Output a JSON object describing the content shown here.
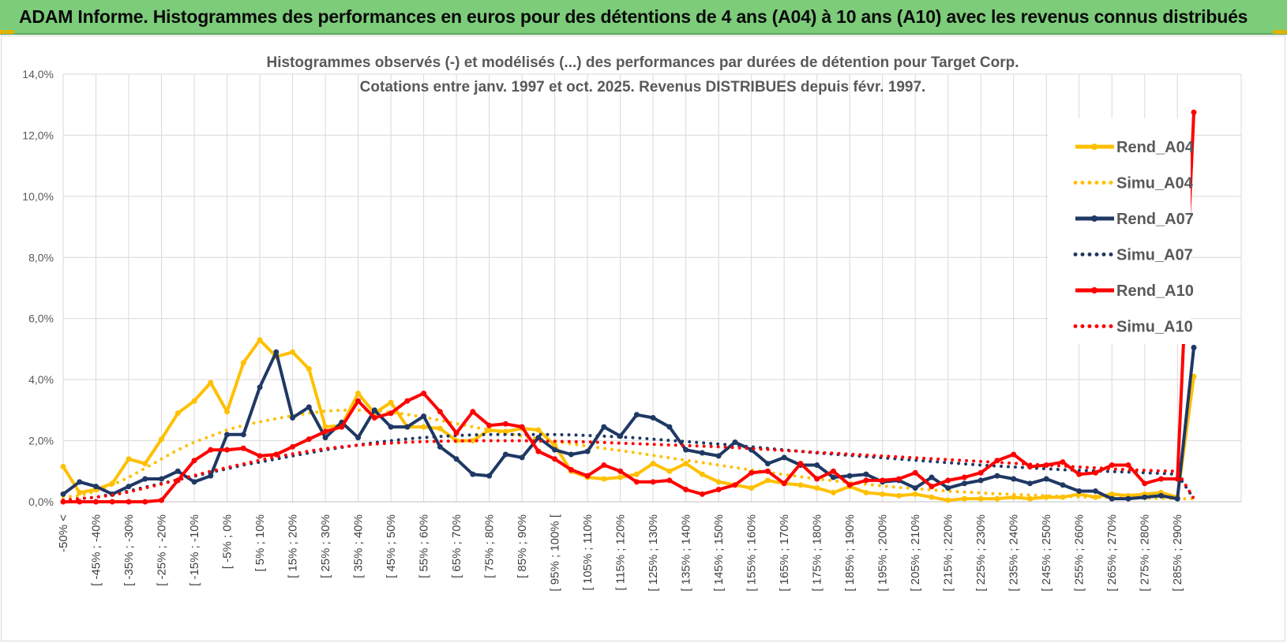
{
  "banner": {
    "title": "ADAM Informe. Histogrammes des performances en euros pour des détentions de 4 ans (A04) à 10 ans (A10) avec les revenus connus distribués"
  },
  "colors": {
    "banner_bg": "#7ccc7a",
    "A04": "#ffc000",
    "A07": "#1f3864",
    "A10": "#ff0000",
    "grid": "#d9d9d9"
  },
  "chart_data": {
    "type": "line",
    "title_lines": [
      "Histogrammes observés (-) et modélisés (...) des performances par durées de détention pour Target Corp.",
      "Cotations entre janv. 1997 et oct. 2025.  Revenus DISTRIBUES depuis févr. 1997."
    ],
    "y_ticks": [
      "0,0%",
      "2,0%",
      "4,0%",
      "6,0%",
      "8,0%",
      "10,0%",
      "12,0%",
      "14,0%"
    ],
    "ylim": [
      0,
      14
    ],
    "grid": true,
    "legend_position": "right",
    "category_labels": [
      "-50% <",
      "[ -45% ; -40%",
      "[ -35% ; -30%",
      "[ -25% ; -20%",
      "[ -15% ; -10%",
      "[ -5% ; 0%",
      "[ 5% ; 10%",
      "[ 15% ; 20%",
      "[ 25% ; 30%",
      "[ 35% ; 40%",
      "[ 45% ; 50%",
      "[ 55% ; 60%",
      "[ 65% ; 70%",
      "[ 75% ; 80%",
      "[ 85% ; 90%",
      "[ 95% ; 100% [",
      "[ 105% ; 110%",
      "[ 115% ; 120%",
      "[ 125% ; 130%",
      "[ 135% ; 140%",
      "[ 145% ; 150%",
      "[ 155% ; 160%",
      "[ 165% ; 170%",
      "[ 175% ; 180%",
      "[ 185% ; 190%",
      "[ 195% ; 200%",
      "[ 205% ; 210%",
      "[ 215% ; 220%",
      "[ 225% ; 230%",
      "[ 235% ; 240%",
      "[ 245% ; 250%",
      "[ 255% ; 260%",
      "[ 265% ; 270%",
      "[ 275% ; 280%",
      "[ 285% ; 290%"
    ],
    "n_points": 70,
    "series": [
      {
        "name": "Rend_A04",
        "style": "solid",
        "color": "#ffc000",
        "values": [
          1.15,
          0.3,
          0.4,
          0.6,
          1.4,
          1.25,
          2.05,
          2.9,
          3.3,
          3.9,
          2.95,
          4.55,
          5.3,
          4.75,
          4.9,
          4.35,
          2.45,
          2.5,
          3.55,
          2.9,
          3.25,
          2.45,
          2.45,
          2.4,
          2.0,
          2.0,
          2.35,
          2.3,
          2.4,
          2.35,
          1.85,
          1.0,
          0.8,
          0.75,
          0.8,
          0.9,
          1.25,
          1.0,
          1.25,
          0.9,
          0.65,
          0.55,
          0.45,
          0.7,
          0.6,
          0.55,
          0.45,
          0.3,
          0.5,
          0.3,
          0.25,
          0.2,
          0.25,
          0.15,
          0.05,
          0.1,
          0.1,
          0.1,
          0.15,
          0.1,
          0.15,
          0.15,
          0.25,
          0.15,
          0.25,
          0.2,
          0.25,
          0.3,
          0.15,
          4.1
        ]
      },
      {
        "name": "Simu_A04",
        "style": "dotted",
        "color": "#ffc000",
        "values": [
          0.15,
          0.2,
          0.35,
          0.55,
          0.8,
          1.1,
          1.4,
          1.7,
          1.95,
          2.15,
          2.35,
          2.5,
          2.62,
          2.72,
          2.82,
          2.9,
          2.97,
          3.0,
          3.0,
          2.98,
          2.93,
          2.86,
          2.77,
          2.67,
          2.56,
          2.45,
          2.35,
          2.25,
          2.15,
          2.06,
          1.98,
          1.9,
          1.82,
          1.75,
          1.68,
          1.6,
          1.52,
          1.44,
          1.36,
          1.28,
          1.2,
          1.12,
          1.04,
          0.96,
          0.89,
          0.82,
          0.75,
          0.69,
          0.63,
          0.57,
          0.52,
          0.47,
          0.43,
          0.39,
          0.35,
          0.32,
          0.29,
          0.26,
          0.24,
          0.22,
          0.2,
          0.18,
          0.16,
          0.15,
          0.14,
          0.13,
          0.12,
          0.11,
          0.1,
          0.1
        ]
      },
      {
        "name": "Rend_A07",
        "style": "solid",
        "color": "#1f3864",
        "values": [
          0.25,
          0.65,
          0.5,
          0.25,
          0.5,
          0.75,
          0.75,
          1.0,
          0.65,
          0.85,
          2.2,
          2.2,
          3.75,
          4.9,
          2.75,
          3.1,
          2.1,
          2.6,
          2.1,
          3.0,
          2.45,
          2.45,
          2.8,
          1.8,
          1.4,
          0.9,
          0.85,
          1.55,
          1.45,
          2.1,
          1.7,
          1.55,
          1.65,
          2.45,
          2.15,
          2.85,
          2.75,
          2.45,
          1.7,
          1.6,
          1.5,
          1.95,
          1.7,
          1.25,
          1.45,
          1.2,
          1.2,
          0.8,
          0.85,
          0.9,
          0.65,
          0.7,
          0.45,
          0.8,
          0.45,
          0.6,
          0.7,
          0.85,
          0.75,
          0.6,
          0.75,
          0.55,
          0.35,
          0.35,
          0.1,
          0.1,
          0.15,
          0.2,
          0.1,
          5.05
        ]
      },
      {
        "name": "Simu_A07",
        "style": "dotted",
        "color": "#1f3864",
        "values": [
          0.05,
          0.1,
          0.15,
          0.25,
          0.35,
          0.48,
          0.6,
          0.72,
          0.84,
          0.96,
          1.08,
          1.2,
          1.3,
          1.4,
          1.5,
          1.6,
          1.7,
          1.78,
          1.86,
          1.94,
          2.0,
          2.06,
          2.1,
          2.14,
          2.17,
          2.19,
          2.2,
          2.2,
          2.2,
          2.2,
          2.2,
          2.19,
          2.17,
          2.15,
          2.12,
          2.09,
          2.05,
          2.01,
          1.97,
          1.93,
          1.89,
          1.85,
          1.8,
          1.75,
          1.7,
          1.65,
          1.6,
          1.56,
          1.52,
          1.48,
          1.44,
          1.4,
          1.36,
          1.32,
          1.28,
          1.24,
          1.2,
          1.17,
          1.14,
          1.11,
          1.08,
          1.05,
          1.03,
          1.01,
          0.99,
          0.97,
          0.95,
          0.93,
          0.9,
          0.1
        ]
      },
      {
        "name": "Rend_A10",
        "style": "solid",
        "color": "#ff0000",
        "values": [
          0.0,
          0.0,
          0.0,
          0.0,
          0.0,
          0.0,
          0.05,
          0.7,
          1.35,
          1.7,
          1.7,
          1.75,
          1.5,
          1.55,
          1.8,
          2.05,
          2.3,
          2.45,
          3.3,
          2.75,
          2.9,
          3.3,
          3.55,
          2.95,
          2.25,
          2.95,
          2.5,
          2.55,
          2.45,
          1.65,
          1.4,
          1.05,
          0.85,
          1.2,
          1.0,
          0.65,
          0.65,
          0.7,
          0.4,
          0.25,
          0.4,
          0.55,
          0.95,
          1.0,
          0.6,
          1.25,
          0.75,
          1.0,
          0.55,
          0.7,
          0.7,
          0.75,
          0.95,
          0.5,
          0.7,
          0.8,
          0.95,
          1.35,
          1.55,
          1.15,
          1.2,
          1.3,
          0.9,
          0.95,
          1.2,
          1.2,
          0.6,
          0.75,
          0.75,
          12.75
        ]
      },
      {
        "name": "Simu_A10",
        "style": "dotted",
        "color": "#ff0000",
        "values": [
          0.05,
          0.1,
          0.15,
          0.22,
          0.32,
          0.45,
          0.58,
          0.72,
          0.86,
          1.0,
          1.12,
          1.24,
          1.36,
          1.47,
          1.57,
          1.66,
          1.74,
          1.8,
          1.85,
          1.89,
          1.92,
          1.95,
          1.97,
          1.98,
          1.99,
          2.0,
          2.0,
          2.0,
          2.0,
          1.99,
          1.98,
          1.97,
          1.96,
          1.94,
          1.92,
          1.9,
          1.88,
          1.86,
          1.84,
          1.82,
          1.8,
          1.77,
          1.74,
          1.71,
          1.68,
          1.65,
          1.62,
          1.59,
          1.56,
          1.53,
          1.5,
          1.47,
          1.44,
          1.41,
          1.38,
          1.35,
          1.32,
          1.29,
          1.26,
          1.23,
          1.2,
          1.17,
          1.14,
          1.11,
          1.08,
          1.05,
          1.03,
          1.01,
          1.0,
          0.1
        ]
      }
    ]
  }
}
